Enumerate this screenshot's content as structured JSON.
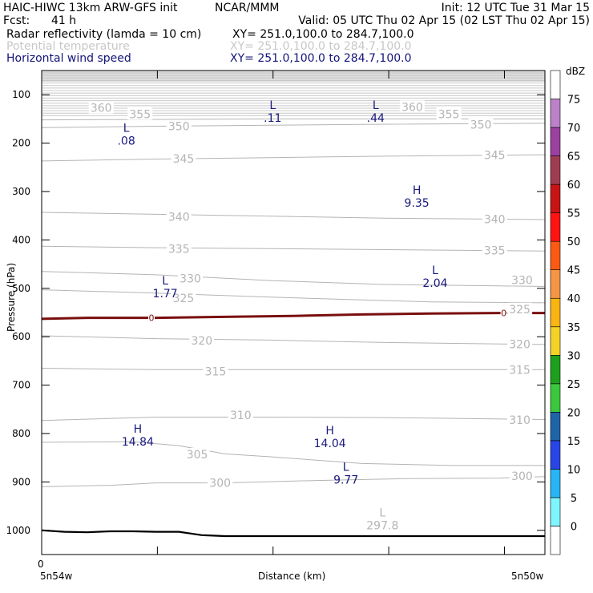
{
  "header": {
    "model": "HAIC-HIWC 13km ARW-GFS init",
    "org": "NCAR/MMM",
    "init": "Init: 12 UTC Tue 31 Mar 15",
    "fcst_label": "Fcst:",
    "fcst_value": "41 h",
    "valid": "Valid: 05 UTC Thu 02 Apr 15 (02 LST Thu 02 Apr 15)",
    "fields": [
      {
        "name": "Radar reflectivity (lamda = 10 cm)",
        "xy": "XY= 251.0,100.0 to 284.7,100.0",
        "color": "#000000"
      },
      {
        "name": "Potential temperature",
        "xy": "XY= 251.0,100.0 to 284.7,100.0",
        "color": "#c8c8c8"
      },
      {
        "name": "Horizontal wind speed",
        "xy": "XY= 251.0,100.0 to 284.7,100.0",
        "color": "#14147a"
      }
    ]
  },
  "colors": {
    "theta": "#b4b4b4",
    "wind": "#1a1a7e",
    "refl_contour": "#7a0e0e",
    "terrain": "#000000"
  },
  "chart_data": {
    "type": "line",
    "ylabel": "Pressure (hPa)",
    "xlabel": "Distance (km)",
    "y_ticks": [
      100,
      200,
      300,
      400,
      500,
      600,
      700,
      800,
      900,
      1000
    ],
    "ylim": [
      1050,
      50
    ],
    "y_scale": "linear-inverted",
    "xlim": [
      0,
      22
    ],
    "x_tick_label": "0",
    "x_start_label": "5n54w",
    "x_end_label": "5n50w",
    "theta_labels": [
      {
        "text": "360",
        "x": 2.6,
        "p": 127
      },
      {
        "text": "355",
        "x": 4.3,
        "p": 140
      },
      {
        "text": "350",
        "x": 6.0,
        "p": 165
      },
      {
        "text": "345",
        "x": 6.2,
        "p": 232
      },
      {
        "text": "340",
        "x": 6.0,
        "p": 352
      },
      {
        "text": "335",
        "x": 6.0,
        "p": 418
      },
      {
        "text": "330",
        "x": 6.5,
        "p": 480
      },
      {
        "text": "325",
        "x": 6.2,
        "p": 520
      },
      {
        "text": "320",
        "x": 7.0,
        "p": 608
      },
      {
        "text": "315",
        "x": 7.6,
        "p": 672
      },
      {
        "text": "310",
        "x": 8.7,
        "p": 762
      },
      {
        "text": "305",
        "x": 6.8,
        "p": 843
      },
      {
        "text": "300",
        "x": 7.8,
        "p": 902
      },
      {
        "text": "360",
        "x": 16.2,
        "p": 125
      },
      {
        "text": "355",
        "x": 17.8,
        "p": 140
      },
      {
        "text": "350",
        "x": 19.2,
        "p": 162
      },
      {
        "text": "345",
        "x": 19.8,
        "p": 225
      },
      {
        "text": "340",
        "x": 19.8,
        "p": 357
      },
      {
        "text": "335",
        "x": 19.8,
        "p": 422
      },
      {
        "text": "330",
        "x": 21.0,
        "p": 483
      },
      {
        "text": "325",
        "x": 20.9,
        "p": 543
      },
      {
        "text": "320",
        "x": 20.9,
        "p": 615
      },
      {
        "text": "315",
        "x": 20.9,
        "p": 668
      },
      {
        "text": "310",
        "x": 20.9,
        "p": 772
      },
      {
        "text": "300",
        "x": 21.0,
        "p": 888
      }
    ],
    "theta_extrema": [
      {
        "kind": "L",
        "value": "297.8",
        "x": 14.9,
        "p": 985
      }
    ],
    "wind_extrema": [
      {
        "kind": "L",
        "value": ".11",
        "x": 10.1,
        "p": 143
      },
      {
        "kind": "L",
        "value": ".44",
        "x": 14.6,
        "p": 143
      },
      {
        "kind": "L",
        "value": ".08",
        "x": 3.7,
        "p": 190
      },
      {
        "kind": "H",
        "value": "9.35",
        "x": 16.4,
        "p": 318
      },
      {
        "kind": "L",
        "value": "2.04",
        "x": 17.2,
        "p": 484
      },
      {
        "kind": "L",
        "value": "1.77",
        "x": 5.4,
        "p": 505
      },
      {
        "kind": "H",
        "value": "14.84",
        "x": 4.2,
        "p": 812
      },
      {
        "kind": "H",
        "value": "14.04",
        "x": 12.6,
        "p": 815
      },
      {
        "kind": "L",
        "value": "9.77",
        "x": 13.3,
        "p": 890
      }
    ],
    "reflectivity_contour": {
      "level_label": "0",
      "points": [
        [
          0,
          563
        ],
        [
          2,
          561
        ],
        [
          5,
          561
        ],
        [
          8,
          559
        ],
        [
          11,
          557
        ],
        [
          14,
          554
        ],
        [
          17,
          552
        ],
        [
          20,
          551
        ],
        [
          22,
          551
        ]
      ],
      "labels": [
        {
          "x": 4.8,
          "p": 561
        },
        {
          "x": 20.2,
          "p": 551
        }
      ]
    },
    "terrain": [
      [
        0,
        1000
      ],
      [
        1,
        1003
      ],
      [
        2,
        1004
      ],
      [
        3,
        1002
      ],
      [
        4,
        1002
      ],
      [
        5,
        1003
      ],
      [
        6,
        1003
      ],
      [
        7,
        1010
      ],
      [
        8,
        1012
      ],
      [
        22,
        1012
      ]
    ],
    "theta_lines": [
      [
        [
          0,
          152
        ],
        [
          5,
          151
        ],
        [
          10,
          150
        ],
        [
          15,
          150
        ],
        [
          22,
          150
        ]
      ],
      [
        [
          0,
          168
        ],
        [
          5,
          165
        ],
        [
          10,
          163
        ],
        [
          15,
          161
        ],
        [
          22,
          159
        ]
      ],
      [
        [
          0,
          237
        ],
        [
          5,
          233
        ],
        [
          10,
          230
        ],
        [
          15,
          227
        ],
        [
          22,
          224
        ]
      ],
      [
        [
          0,
          343
        ],
        [
          5,
          347
        ],
        [
          10,
          351
        ],
        [
          15,
          355
        ],
        [
          22,
          358
        ]
      ],
      [
        [
          0,
          413
        ],
        [
          5,
          416
        ],
        [
          10,
          418
        ],
        [
          15,
          420
        ],
        [
          22,
          423
        ]
      ],
      [
        [
          0,
          465
        ],
        [
          5,
          472
        ],
        [
          10,
          484
        ],
        [
          15,
          492
        ],
        [
          20,
          495
        ],
        [
          22,
          496
        ]
      ],
      [
        [
          0,
          503
        ],
        [
          5,
          510
        ],
        [
          10,
          518
        ],
        [
          14,
          524
        ],
        [
          17,
          528
        ],
        [
          22,
          530
        ]
      ],
      [
        [
          0,
          598
        ],
        [
          5,
          604
        ],
        [
          10,
          607
        ],
        [
          15,
          612
        ],
        [
          22,
          616
        ]
      ],
      [
        [
          0,
          665
        ],
        [
          5,
          668
        ],
        [
          10,
          668
        ],
        [
          15,
          668
        ],
        [
          22,
          668
        ]
      ],
      [
        [
          0,
          773
        ],
        [
          5,
          766
        ],
        [
          10,
          766
        ],
        [
          15,
          767
        ],
        [
          22,
          771
        ]
      ],
      [
        [
          0,
          818
        ],
        [
          4,
          817
        ],
        [
          6,
          825
        ],
        [
          8,
          842
        ],
        [
          10,
          848
        ],
        [
          14,
          862
        ],
        [
          18,
          866
        ],
        [
          22,
          866
        ]
      ],
      [
        [
          0,
          910
        ],
        [
          3,
          907
        ],
        [
          5,
          902
        ],
        [
          8,
          902
        ],
        [
          12,
          897
        ],
        [
          16,
          893
        ],
        [
          20,
          892
        ],
        [
          22,
          889
        ]
      ]
    ],
    "colorbar": {
      "unit": "dBZ",
      "levels": [
        0,
        5,
        10,
        15,
        20,
        25,
        30,
        35,
        40,
        45,
        50,
        55,
        60,
        65,
        70,
        75
      ],
      "colors": [
        "#ffffff",
        "#7ff5ff",
        "#28b4f5",
        "#2846e6",
        "#2064a8",
        "#3cc83c",
        "#1ea01e",
        "#f5d228",
        "#fab414",
        "#f59646",
        "#fa5a14",
        "#ff1414",
        "#c81414",
        "#a03c50",
        "#9b41a0",
        "#bc82c8",
        "#ffffff"
      ]
    }
  }
}
